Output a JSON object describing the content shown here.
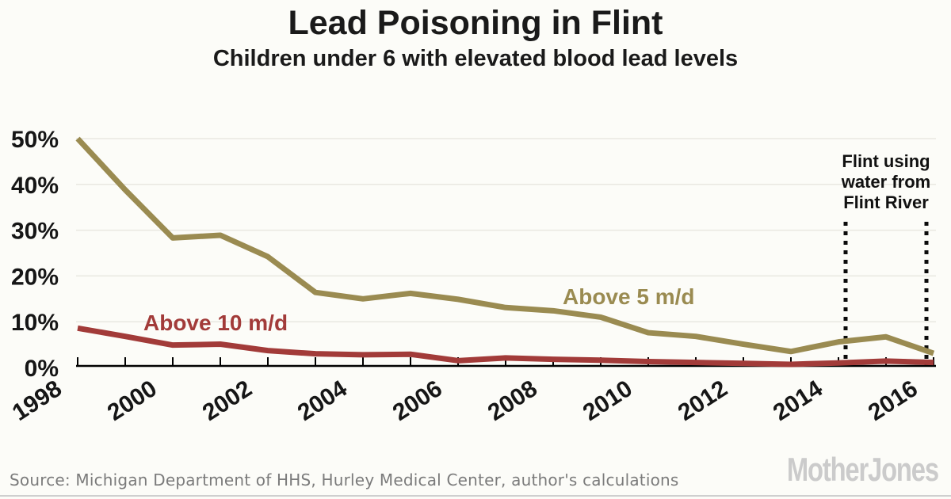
{
  "header": {
    "title": "Lead Poisoning in Flint",
    "subtitle": "Children under 6 with elevated blood lead levels"
  },
  "footer": {
    "source": "Source: Michigan Department of HHS, Hurley Medical Center, author's calculations",
    "logo_text": "MotherJones"
  },
  "colors": {
    "background": "#fcfcf8",
    "above5_olive": "#9a8b51",
    "above10_red": "#a23b39",
    "gridline": "#e9e8e1",
    "axis": "#000000",
    "annotation_text": "#111111",
    "source_text": "#7b7b7b",
    "logo_gray": "#cbcbcb"
  },
  "chart_data": {
    "type": "line",
    "title": "Lead Poisoning in Flint",
    "subtitle": "Children under 6 with elevated blood lead levels",
    "xlabel": "",
    "ylabel": "",
    "xlim": [
      1998,
      2016
    ],
    "ylim": [
      0,
      52
    ],
    "grid": "horizontal-light",
    "legend": "inline-series-labels",
    "x": [
      1998,
      1999,
      2000,
      2001,
      2002,
      2003,
      2004,
      2005,
      2006,
      2007,
      2008,
      2009,
      2010,
      2011,
      2012,
      2013,
      2014,
      2015,
      2016
    ],
    "series": [
      {
        "name": "Above 5 m/d",
        "color": "#9a8b51",
        "values": [
          50.0,
          38.8,
          28.3,
          28.9,
          24.2,
          16.4,
          15.0,
          16.2,
          14.9,
          13.1,
          12.4,
          11.0,
          7.6,
          6.8,
          5.1,
          3.5,
          5.6,
          6.7,
          3.1
        ]
      },
      {
        "name": "Above 10 m/d",
        "color": "#a23b39",
        "values": [
          8.6,
          6.8,
          4.9,
          5.1,
          3.7,
          3.0,
          2.8,
          2.9,
          1.5,
          2.1,
          1.8,
          1.6,
          1.3,
          1.1,
          0.9,
          0.7,
          1.0,
          1.4,
          1.1
        ]
      }
    ],
    "xticks_labeled": [
      1998,
      2000,
      2002,
      2004,
      2006,
      2008,
      2010,
      2012,
      2014,
      2016
    ],
    "yticks": [
      {
        "label": "0%",
        "value": 0
      },
      {
        "label": "10%",
        "value": 10
      },
      {
        "label": "20%",
        "value": 20
      },
      {
        "label": "30%",
        "value": 30
      },
      {
        "label": "40%",
        "value": 40
      },
      {
        "label": "50%",
        "value": 50
      }
    ],
    "annotation": {
      "text_lines": [
        "Flint using",
        "water from",
        "Flint River"
      ],
      "x_start": 2014.15,
      "x_end": 2015.85,
      "style": "vertical-dotted-lines"
    }
  }
}
